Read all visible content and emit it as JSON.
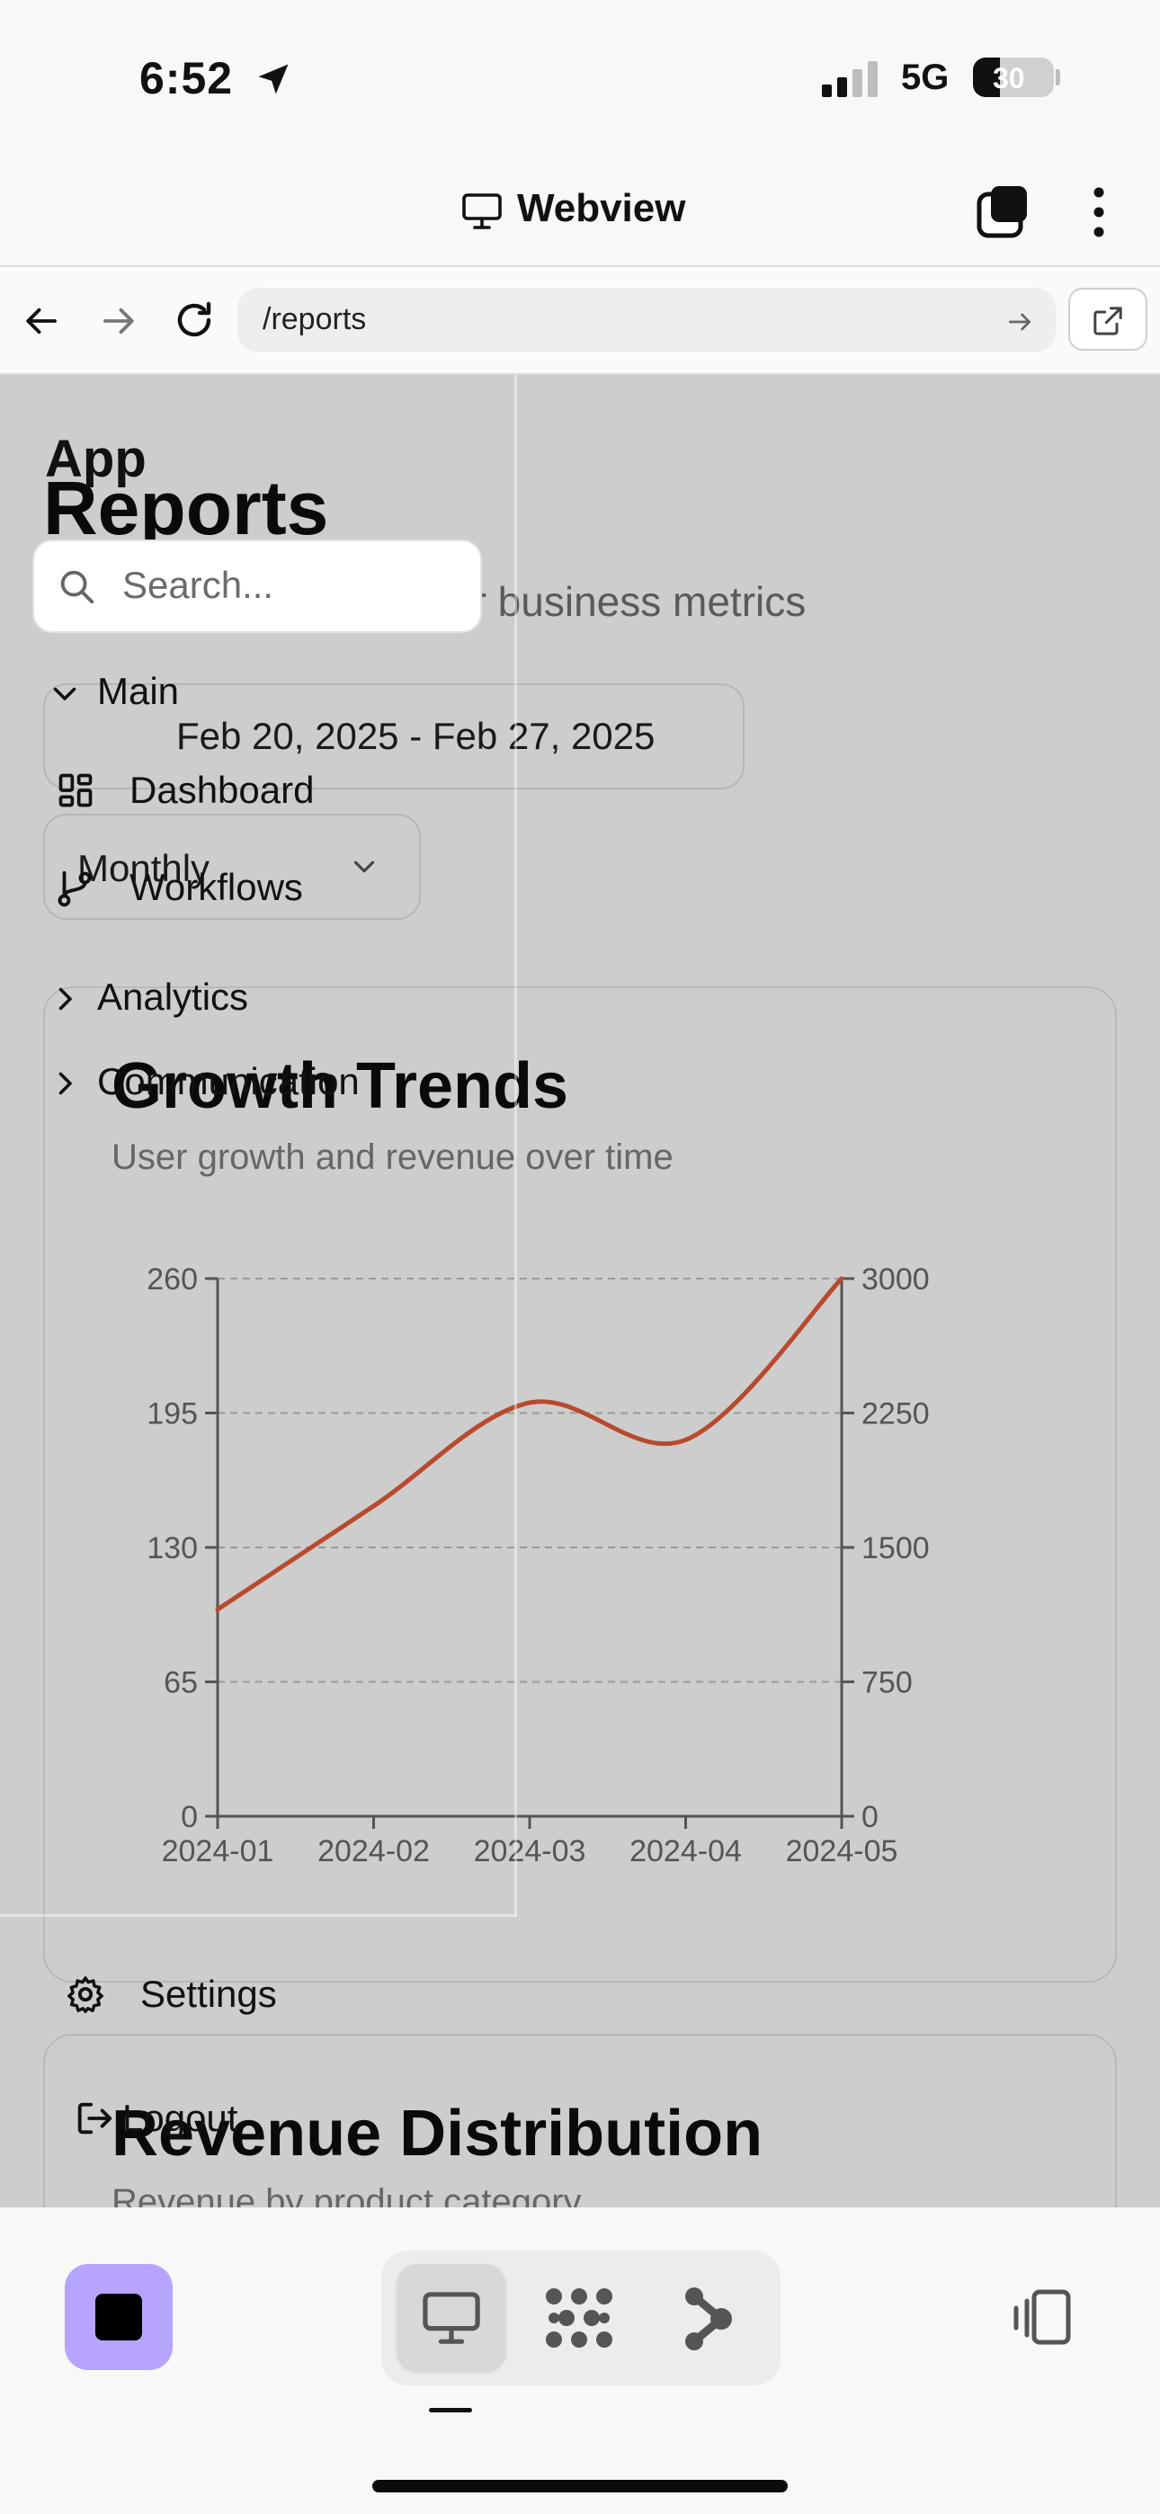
{
  "status_bar": {
    "time": "6:52",
    "network": "5G",
    "battery": "30"
  },
  "webview": {
    "title": "Webview"
  },
  "browser": {
    "url": "/reports"
  },
  "page": {
    "title": "Reports",
    "subtitle": "ur business metrics",
    "date_range": "Feb 20, 2025 - Feb 27, 2025",
    "period": "Monthly"
  },
  "sidebar": {
    "app_label": "App",
    "search_placeholder": "Search...",
    "main_label": "Main",
    "dashboard_label": "Dashboard",
    "workflows_label": "Workflows",
    "analytics_label": "Analytics",
    "communication_label": "Communication",
    "settings_label": "Settings",
    "logout_label": "Logout"
  },
  "growth_card": {
    "title": "Growth Trends",
    "description": "User growth and revenue over time"
  },
  "revenue_card": {
    "title": "Revenue Distribution",
    "description": "Revenue by product category"
  },
  "chart_data": {
    "type": "line",
    "title": "Growth Trends",
    "subtitle": "User growth and revenue over time",
    "x": [
      "2024-01",
      "2024-02",
      "2024-03",
      "2024-04",
      "2024-05"
    ],
    "series": [
      {
        "values": [
          100,
          150,
          200,
          182,
          260
        ],
        "axis": "left",
        "color": "#b84a2e"
      }
    ],
    "left_ticks": [
      0,
      65,
      130,
      195,
      260
    ],
    "right_ticks": [
      0,
      750,
      1500,
      2250,
      3000
    ],
    "left_ylim": [
      0,
      260
    ],
    "right_ylim": [
      0,
      3000
    ],
    "grid": "horizontal dashed",
    "legend": "none"
  },
  "colors": {
    "accent_stop": "#b7a4ff",
    "line_series": "#b84a2e",
    "overlay": "#cdcdcd"
  }
}
